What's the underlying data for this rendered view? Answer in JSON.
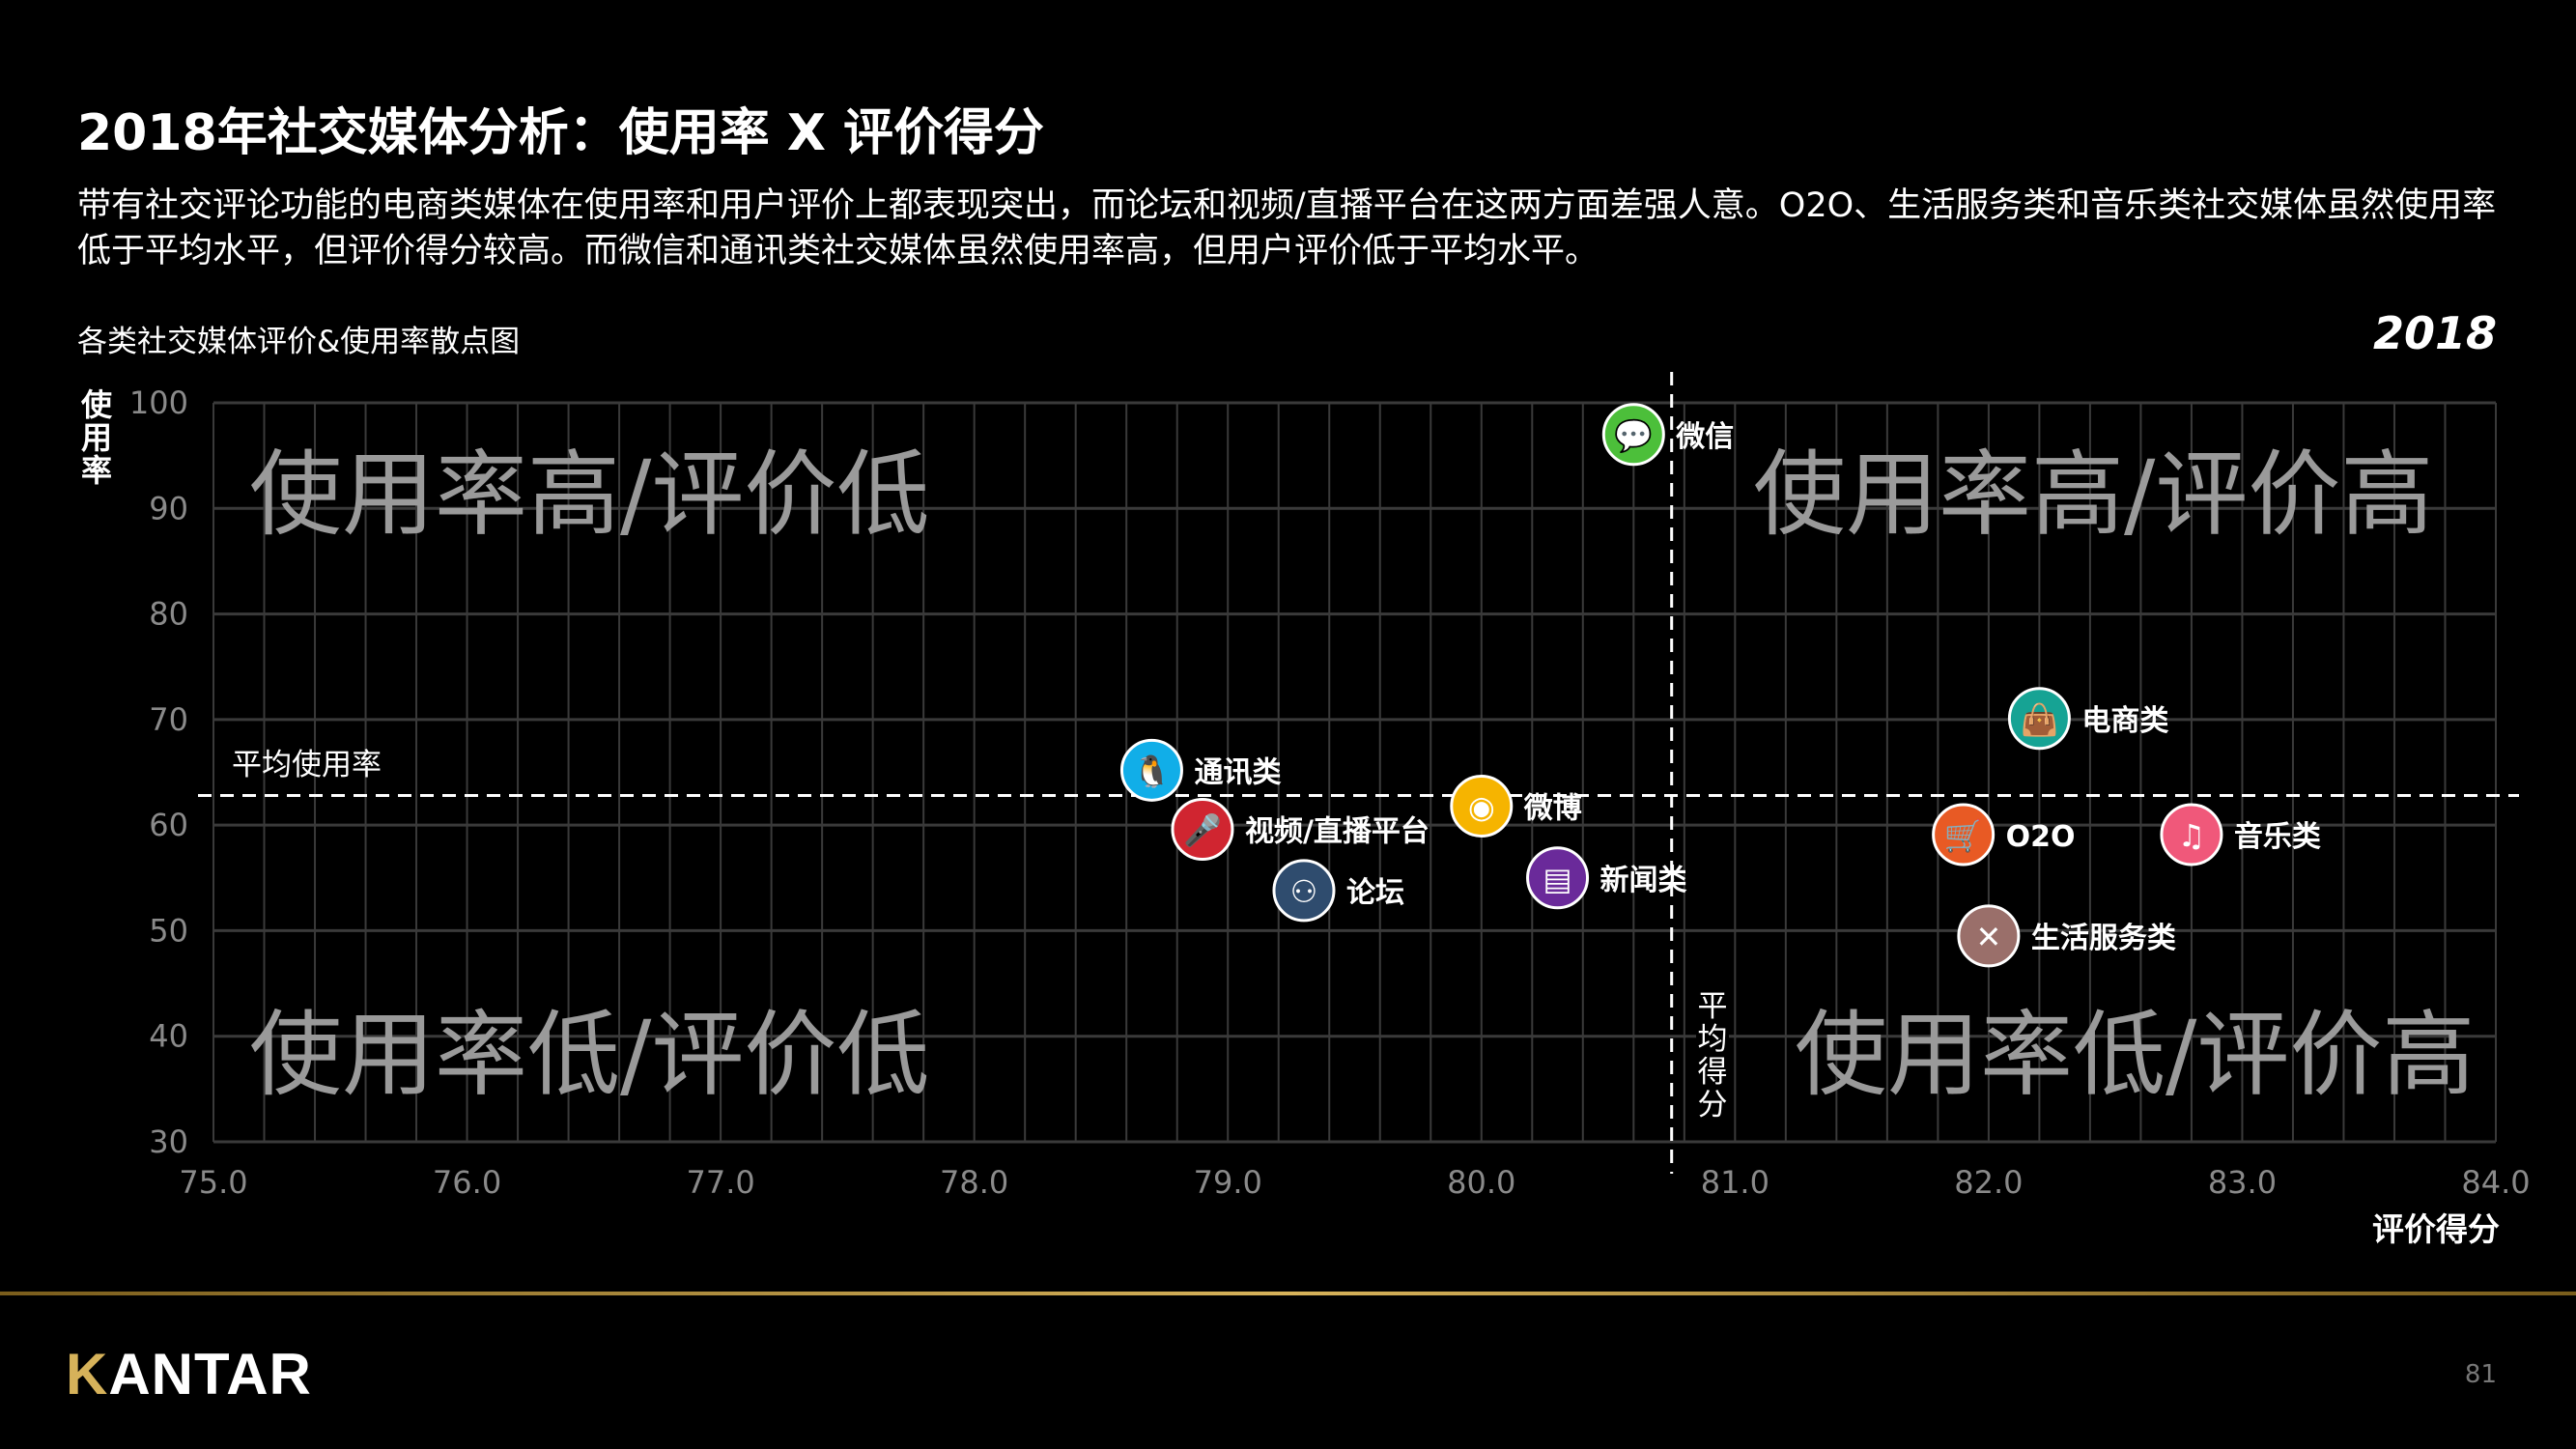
{
  "header": {
    "title": "2018年社交媒体分析：使用率 X 评价得分",
    "subtitle": "带有社交评论功能的电商类媒体在使用率和用户评价上都表现突出，而论坛和视频/直播平台在这两方面差强人意。O2O、生活服务类和音乐类社交媒体虽然使用率低于平均水平，但评价得分较高。而微信和通讯类社交媒体虽然使用率高，但用户评价低于平均水平。",
    "chart_title": "各类社交媒体评价&使用率散点图",
    "year": "2018"
  },
  "chart_data": {
    "type": "scatter",
    "xlabel": "评价得分",
    "ylabel": "使用率",
    "xlim": [
      75.0,
      84.0
    ],
    "ylim": [
      30,
      100
    ],
    "x_ticks": [
      "75.0",
      "76.0",
      "77.0",
      "78.0",
      "79.0",
      "80.0",
      "81.0",
      "82.0",
      "83.0",
      "84.0"
    ],
    "y_ticks": [
      "30",
      "40",
      "50",
      "60",
      "70",
      "80",
      "90",
      "100"
    ],
    "grid": true,
    "reference_lines": {
      "avg_usage": {
        "label": "平均使用率",
        "value": 62.8
      },
      "avg_score": {
        "label": "平均得分",
        "value": 80.75
      }
    },
    "quadrant_labels": {
      "top_left": "使用率高/评价低",
      "top_right": "使用率高/评价高",
      "bottom_left": "使用率低/评价低",
      "bottom_right": "使用率低/评价高"
    },
    "points": [
      {
        "label": "微信",
        "x": 80.6,
        "y": 97.0,
        "color": "#4cbf3a",
        "icon": "wechat-icon"
      },
      {
        "label": "电商类",
        "x": 82.2,
        "y": 70.1,
        "color": "#16a394",
        "icon": "shopping-bag-icon"
      },
      {
        "label": "通讯类",
        "x": 78.7,
        "y": 65.2,
        "color": "#11aee8",
        "icon": "qq-penguin-icon"
      },
      {
        "label": "微博",
        "x": 80.0,
        "y": 61.8,
        "color": "#f6b400",
        "icon": "weibo-icon"
      },
      {
        "label": "视频/直播平台",
        "x": 78.9,
        "y": 59.6,
        "color": "#d02530",
        "icon": "microphone-icon"
      },
      {
        "label": "新闻类",
        "x": 80.3,
        "y": 55.0,
        "color": "#6a2a9a",
        "icon": "newspaper-icon"
      },
      {
        "label": "论坛",
        "x": 79.3,
        "y": 53.8,
        "color": "#2f4c6e",
        "icon": "people-icon"
      },
      {
        "label": "O2O",
        "x": 81.9,
        "y": 59.1,
        "color": "#e85a24",
        "icon": "shopping-cart-icon"
      },
      {
        "label": "音乐类",
        "x": 82.8,
        "y": 59.1,
        "color": "#f0587a",
        "icon": "music-note-icon"
      },
      {
        "label": "生活服务类",
        "x": 82.0,
        "y": 49.5,
        "color": "#9a6f6a",
        "icon": "fork-spoon-icon"
      }
    ]
  },
  "footer": {
    "logo": "KANTAR",
    "page_number": "81",
    "accent_color": "#d6b25a"
  }
}
